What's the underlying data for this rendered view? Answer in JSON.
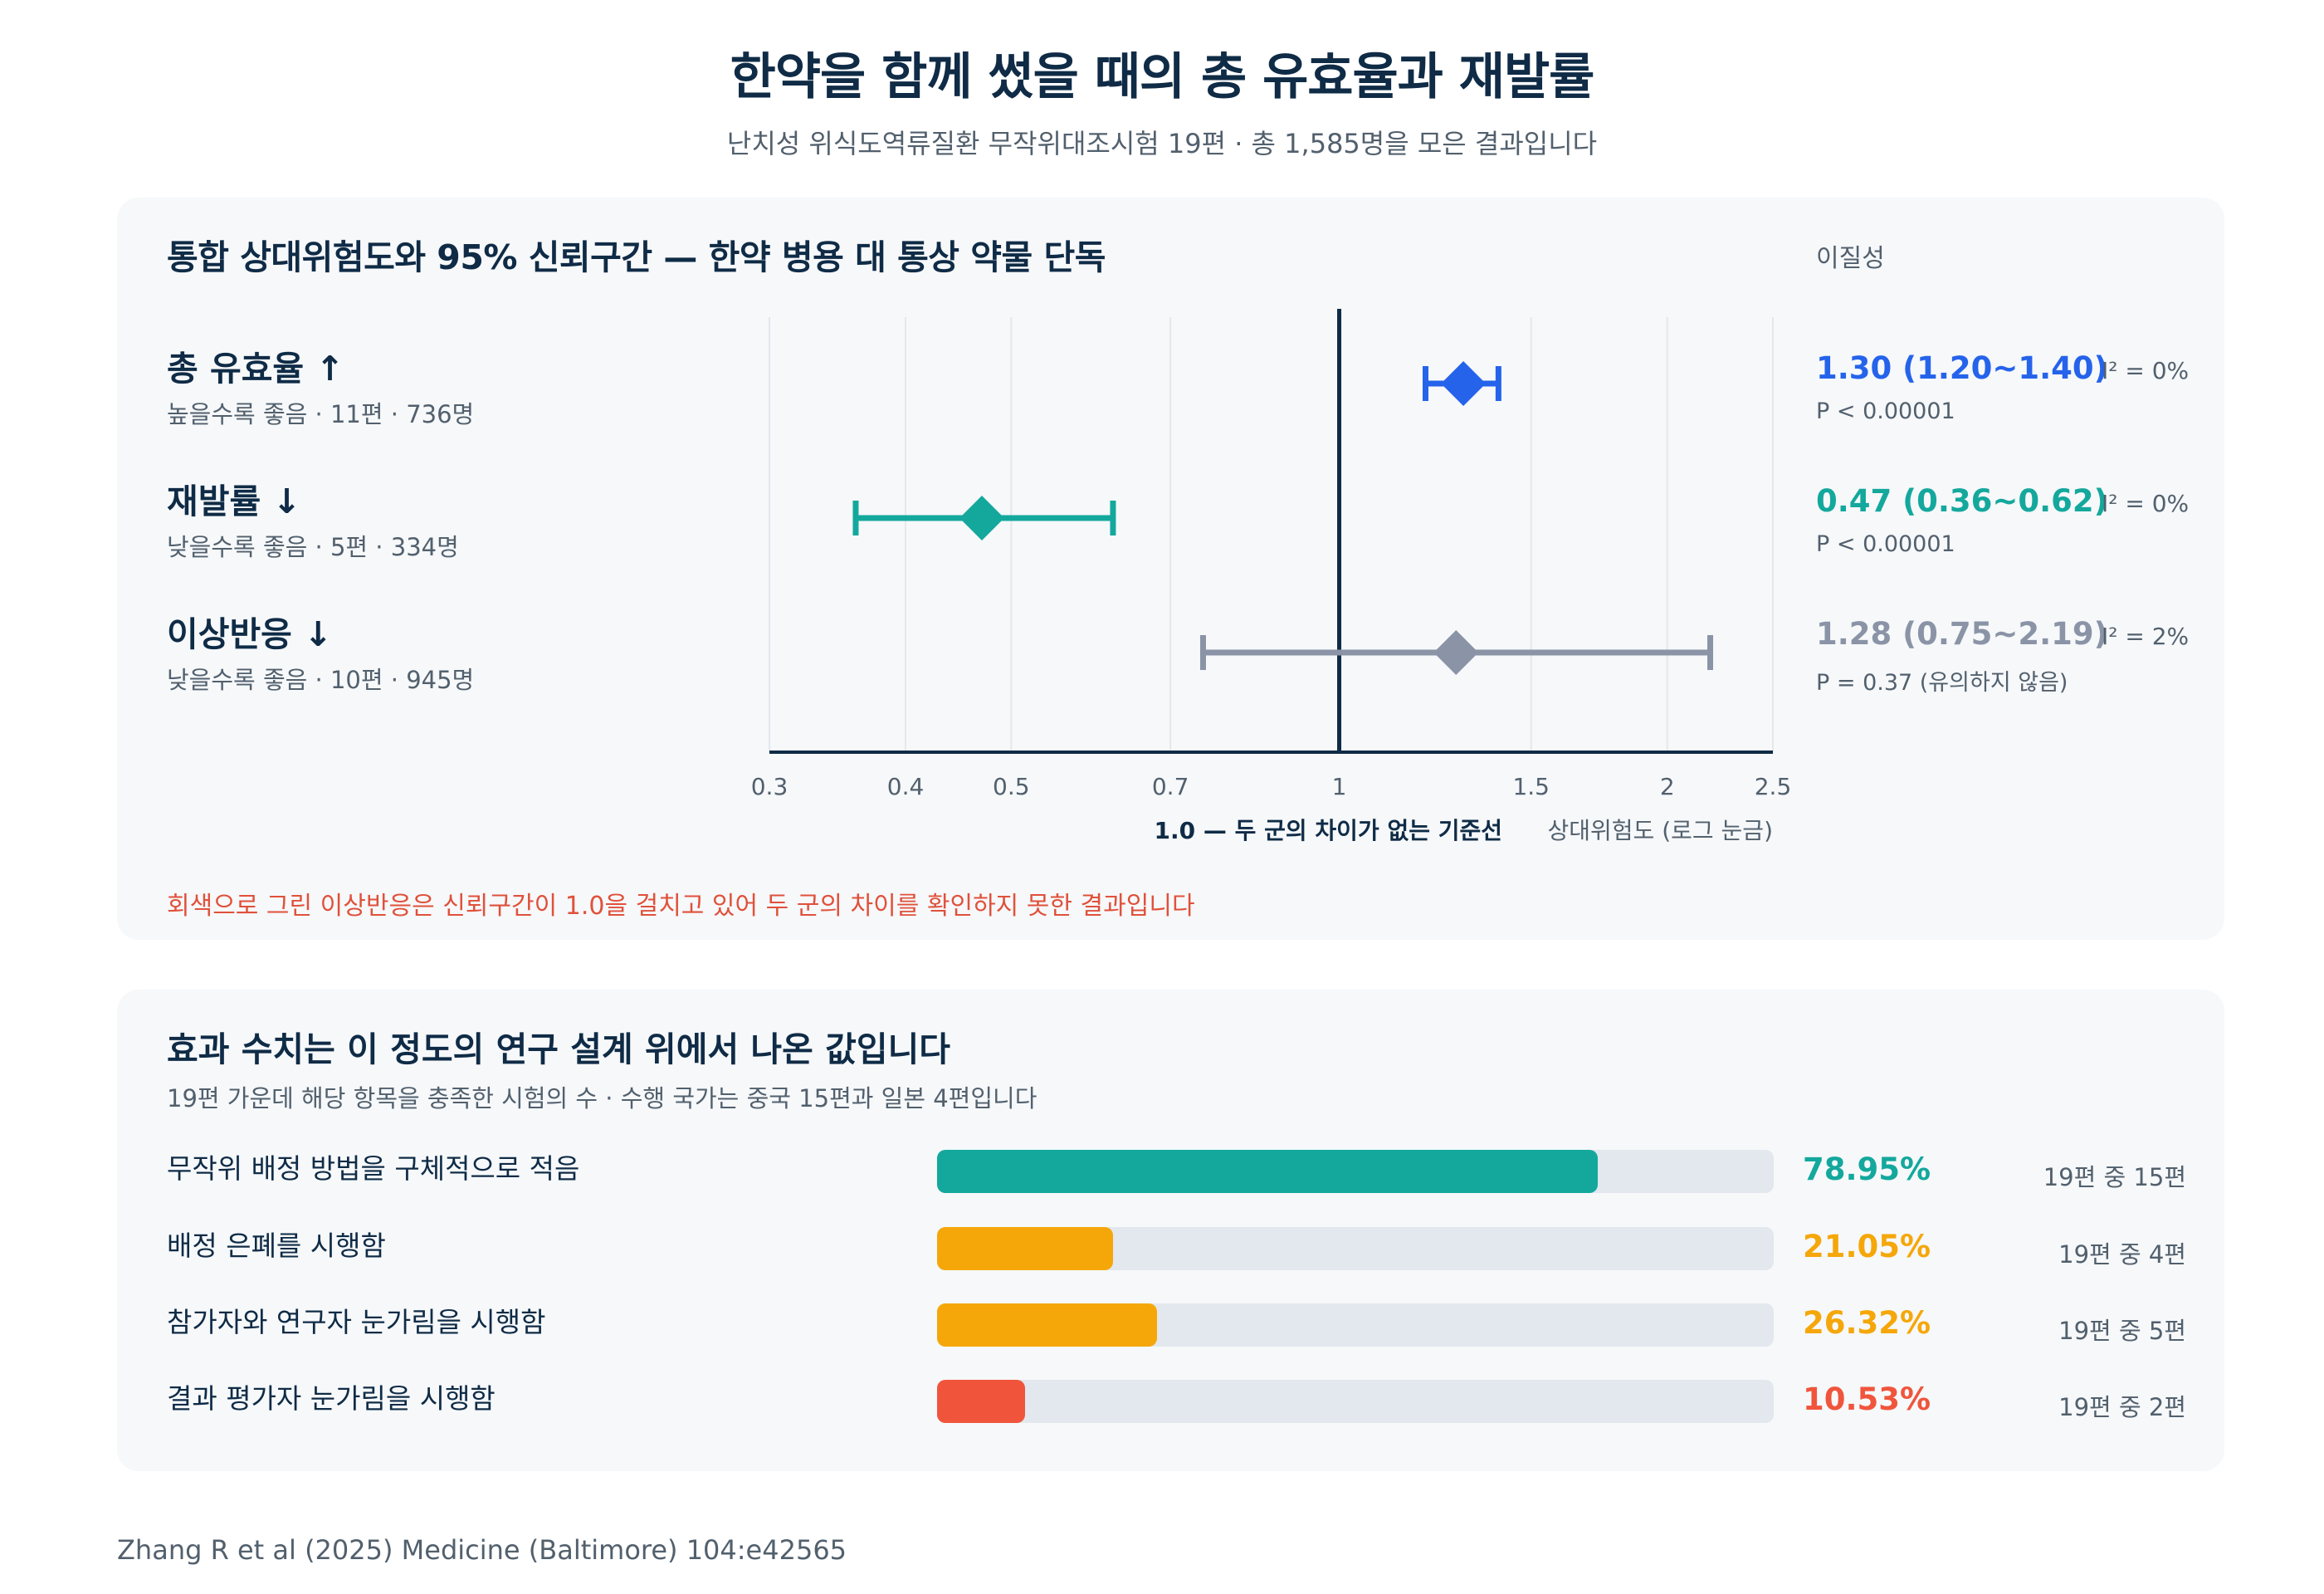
{
  "title": "한약을 함께 썼을 때의 총 유효율과 재발률",
  "subtitle": "난치성 위식도역류질환 무작위대조시험 19편 · 총 1,585명을 모은 결과입니다",
  "forest_card": {
    "title": "통합 상대위험도와 95% 신뢰구간 — 한약 병용 대 통상 약물 단독",
    "heterogeneity_header": "이질성",
    "footnote": "회색으로 그린 이상반응은 신뢰구간이 1.0을 걸치고 있어 두 군의 차이를 확인하지 못한 결과입니다"
  },
  "chart_data": [
    {
      "type": "forest",
      "scale": "log",
      "xlim": [
        0.3,
        2.5
      ],
      "ticks": [
        0.3,
        0.4,
        0.5,
        0.7,
        1,
        1.5,
        2,
        2.5
      ],
      "tick_labels": [
        "0.3",
        "0.4",
        "0.5",
        "0.7",
        "1",
        "1.5",
        "2",
        "2.5"
      ],
      "reference_value": 1,
      "reference_label": "1.0 — 두 군의 차이가 없는 기준선",
      "xlabel": "상대위험도 (로그 눈금)",
      "grid": true,
      "outcomes": [
        {
          "label": "총 유효율 ↑",
          "sub": "높을수록 좋음 · 11편 · 736명",
          "rr": 1.3,
          "lower": 1.2,
          "upper": 1.4,
          "rr_text": "1.30 (1.20~1.40)",
          "p_text": "P < 0.00001",
          "i2_text": "I² = 0%",
          "color": "#2563eb"
        },
        {
          "label": "재발률 ↓",
          "sub": "낮을수록 좋음 · 5편 · 334명",
          "rr": 0.47,
          "lower": 0.36,
          "upper": 0.62,
          "rr_text": "0.47 (0.36~0.62)",
          "p_text": "P < 0.00001",
          "i2_text": "I² = 0%",
          "color": "#14a89d"
        },
        {
          "label": "이상반응 ↓",
          "sub": "낮을수록 좋음 · 10편 · 945명",
          "rr": 1.28,
          "lower": 0.75,
          "upper": 2.19,
          "rr_text": "1.28 (0.75~2.19)",
          "p_text": "P = 0.37 (유의하지 않음)",
          "i2_text": "I² = 2%",
          "color": "#8a94a6"
        }
      ]
    },
    {
      "type": "bar",
      "orientation": "horizontal",
      "xlim": [
        0,
        100
      ],
      "title": "효과 수치는 이 정도의 연구 설계 위에서 나온 값입니다",
      "subtitle": "19편 가운데 해당 항목을 충족한 시험의 수 · 수행 국가는 중국 15편과 일본 4편입니다",
      "bars": [
        {
          "label": "무작위 배정 방법을 구체적으로 적음",
          "value": 78.95,
          "value_text": "78.95%",
          "count_text": "19편 중 15편",
          "color": "#14a89d"
        },
        {
          "label": "배정 은폐를 시행함",
          "value": 21.05,
          "value_text": "21.05%",
          "count_text": "19편 중 4편",
          "color": "#f5a70a"
        },
        {
          "label": "참가자와 연구자 눈가림을 시행함",
          "value": 26.32,
          "value_text": "26.32%",
          "count_text": "19편 중 5편",
          "color": "#f5a70a"
        },
        {
          "label": "결과 평가자 눈가림을 시행함",
          "value": 10.53,
          "value_text": "10.53%",
          "count_text": "19편 중 2편",
          "color": "#f0553c"
        }
      ]
    }
  ],
  "source": "Zhang R et al (2025) Medicine (Baltimore) 104:e42565"
}
